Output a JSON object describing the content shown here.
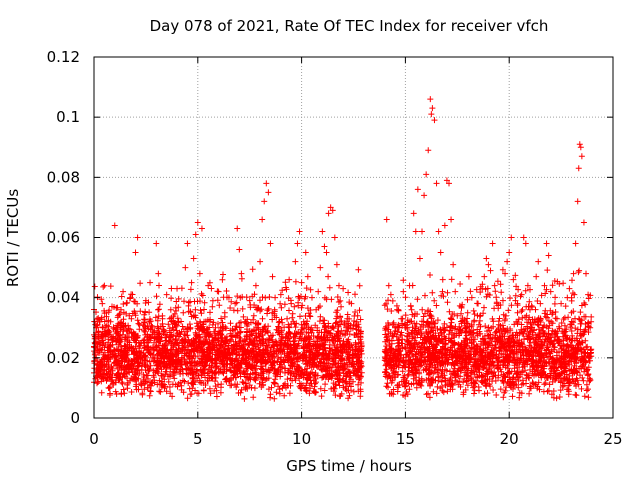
{
  "chart_data": {
    "type": "scatter",
    "title": "Day 078 of 2021, Rate Of TEC Index for receiver vfch",
    "xlabel": "GPS time / hours",
    "ylabel": "ROTI / TECUs",
    "xlim": [
      0,
      25
    ],
    "ylim": [
      0,
      0.12
    ],
    "xticks": [
      0,
      5,
      10,
      15,
      20,
      25
    ],
    "xtick_labels": [
      "0",
      "5",
      "10",
      "15",
      "20",
      "25"
    ],
    "yticks": [
      0,
      0.02,
      0.04,
      0.06,
      0.08,
      0.1,
      0.12
    ],
    "ytick_labels": [
      "0",
      "0.02",
      "0.04",
      "0.06",
      "0.08",
      "0.1",
      "0.12"
    ],
    "grid": true,
    "marker": "+",
    "color": "#ff0000",
    "data_gap_hours": [
      12.9,
      14.0
    ],
    "series": [
      {
        "name": "ROTI",
        "points": [
          [
            0.0,
            0.015
          ],
          [
            0.1,
            0.03
          ],
          [
            0.2,
            0.012
          ],
          [
            0.3,
            0.025
          ],
          [
            0.4,
            0.038
          ],
          [
            0.5,
            0.044
          ],
          [
            0.6,
            0.018
          ],
          [
            0.7,
            0.01
          ],
          [
            0.8,
            0.032
          ],
          [
            0.9,
            0.021
          ],
          [
            1.0,
            0.064
          ],
          [
            1.1,
            0.028
          ],
          [
            1.2,
            0.015
          ],
          [
            1.3,
            0.036
          ],
          [
            1.4,
            0.042
          ],
          [
            1.5,
            0.022
          ],
          [
            1.6,
            0.011
          ],
          [
            1.7,
            0.034
          ],
          [
            1.8,
            0.019
          ],
          [
            1.9,
            0.027
          ],
          [
            2.0,
            0.055
          ],
          [
            2.1,
            0.06
          ],
          [
            2.2,
            0.031
          ],
          [
            2.3,
            0.016
          ],
          [
            2.4,
            0.025
          ],
          [
            2.5,
            0.039
          ],
          [
            2.6,
            0.013
          ],
          [
            2.7,
            0.045
          ],
          [
            2.8,
            0.02
          ],
          [
            2.9,
            0.029
          ],
          [
            3.0,
            0.058
          ],
          [
            3.1,
            0.048
          ],
          [
            3.2,
            0.017
          ],
          [
            3.3,
            0.033
          ],
          [
            3.4,
            0.024
          ],
          [
            3.5,
            0.041
          ],
          [
            3.6,
            0.012
          ],
          [
            3.7,
            0.036
          ],
          [
            3.8,
            0.022
          ],
          [
            3.9,
            0.031
          ],
          [
            4.0,
            0.043
          ],
          [
            4.1,
            0.027
          ],
          [
            4.2,
            0.018
          ],
          [
            4.3,
            0.035
          ],
          [
            4.4,
            0.05
          ],
          [
            4.5,
            0.058
          ],
          [
            4.6,
            0.025
          ],
          [
            4.7,
            0.045
          ],
          [
            4.8,
            0.053
          ],
          [
            4.9,
            0.061
          ],
          [
            5.0,
            0.065
          ],
          [
            5.1,
            0.048
          ],
          [
            5.2,
            0.063
          ],
          [
            5.3,
            0.032
          ],
          [
            5.4,
            0.02
          ],
          [
            5.5,
            0.044
          ],
          [
            5.6,
            0.028
          ],
          [
            5.7,
            0.037
          ],
          [
            5.8,
            0.015
          ],
          [
            5.9,
            0.024
          ],
          [
            6.0,
            0.042
          ],
          [
            6.1,
            0.03
          ],
          [
            6.2,
            0.019
          ],
          [
            6.3,
            0.035
          ],
          [
            6.4,
            0.027
          ],
          [
            6.5,
            0.04
          ],
          [
            6.6,
            0.013
          ],
          [
            6.7,
            0.029
          ],
          [
            6.8,
            0.038
          ],
          [
            6.9,
            0.063
          ],
          [
            7.0,
            0.056
          ],
          [
            7.1,
            0.048
          ],
          [
            7.2,
            0.021
          ],
          [
            7.3,
            0.032
          ],
          [
            7.4,
            0.017
          ],
          [
            7.5,
            0.039
          ],
          [
            7.6,
            0.025
          ],
          [
            7.7,
            0.034
          ],
          [
            7.8,
            0.044
          ],
          [
            7.9,
            0.03
          ],
          [
            8.0,
            0.052
          ],
          [
            8.1,
            0.066
          ],
          [
            8.2,
            0.072
          ],
          [
            8.3,
            0.078
          ],
          [
            8.4,
            0.075
          ],
          [
            8.5,
            0.058
          ],
          [
            8.6,
            0.047
          ],
          [
            8.7,
            0.036
          ],
          [
            8.8,
            0.025
          ],
          [
            8.9,
            0.03
          ],
          [
            9.0,
            0.041
          ],
          [
            9.1,
            0.027
          ],
          [
            9.2,
            0.015
          ],
          [
            9.3,
            0.033
          ],
          [
            9.4,
            0.046
          ],
          [
            9.5,
            0.038
          ],
          [
            9.6,
            0.022
          ],
          [
            9.7,
            0.052
          ],
          [
            9.8,
            0.058
          ],
          [
            9.9,
            0.062
          ],
          [
            10.0,
            0.045
          ],
          [
            10.1,
            0.032
          ],
          [
            10.2,
            0.055
          ],
          [
            10.3,
            0.047
          ],
          [
            10.4,
            0.026
          ],
          [
            10.5,
            0.04
          ],
          [
            10.6,
            0.018
          ],
          [
            10.7,
            0.036
          ],
          [
            10.8,
            0.042
          ],
          [
            10.9,
            0.05
          ],
          [
            11.0,
            0.062
          ],
          [
            11.1,
            0.057
          ],
          [
            11.2,
            0.055
          ],
          [
            11.3,
            0.068
          ],
          [
            11.4,
            0.07
          ],
          [
            11.5,
            0.069
          ],
          [
            11.6,
            0.06
          ],
          [
            11.7,
            0.051
          ],
          [
            11.8,
            0.044
          ],
          [
            11.9,
            0.037
          ],
          [
            12.0,
            0.043
          ],
          [
            12.1,
            0.028
          ],
          [
            12.2,
            0.033
          ],
          [
            12.3,
            0.02
          ],
          [
            12.4,
            0.038
          ],
          [
            12.5,
            0.031
          ],
          [
            12.6,
            0.025
          ],
          [
            12.7,
            0.034
          ],
          [
            12.8,
            0.019
          ],
          [
            14.1,
            0.066
          ],
          [
            14.2,
            0.044
          ],
          [
            14.3,
            0.041
          ],
          [
            14.4,
            0.02
          ],
          [
            14.5,
            0.03
          ],
          [
            14.6,
            0.036
          ],
          [
            14.7,
            0.025
          ],
          [
            14.8,
            0.033
          ],
          [
            14.9,
            0.042
          ],
          [
            15.0,
            0.03
          ],
          [
            15.1,
            0.027
          ],
          [
            15.2,
            0.044
          ],
          [
            15.3,
            0.036
          ],
          [
            15.4,
            0.068
          ],
          [
            15.5,
            0.062
          ],
          [
            15.6,
            0.076
          ],
          [
            15.7,
            0.053
          ],
          [
            15.8,
            0.062
          ],
          [
            15.9,
            0.074
          ],
          [
            16.0,
            0.081
          ],
          [
            16.1,
            0.089
          ],
          [
            16.2,
            0.106
          ],
          [
            16.25,
            0.101
          ],
          [
            16.3,
            0.103
          ],
          [
            16.4,
            0.099
          ],
          [
            16.5,
            0.078
          ],
          [
            16.6,
            0.062
          ],
          [
            16.7,
            0.055
          ],
          [
            16.8,
            0.046
          ],
          [
            16.9,
            0.064
          ],
          [
            17.0,
            0.079
          ],
          [
            17.1,
            0.078
          ],
          [
            17.2,
            0.066
          ],
          [
            17.3,
            0.051
          ],
          [
            17.4,
            0.042
          ],
          [
            17.5,
            0.034
          ],
          [
            17.6,
            0.028
          ],
          [
            17.7,
            0.037
          ],
          [
            17.8,
            0.022
          ],
          [
            17.9,
            0.03
          ],
          [
            18.0,
            0.035
          ],
          [
            18.1,
            0.026
          ],
          [
            18.2,
            0.04
          ],
          [
            18.3,
            0.032
          ],
          [
            18.4,
            0.021
          ],
          [
            18.5,
            0.038
          ],
          [
            18.6,
            0.028
          ],
          [
            18.7,
            0.043
          ],
          [
            18.8,
            0.047
          ],
          [
            18.9,
            0.053
          ],
          [
            19.0,
            0.051
          ],
          [
            19.1,
            0.049
          ],
          [
            19.2,
            0.058
          ],
          [
            19.3,
            0.044
          ],
          [
            19.4,
            0.038
          ],
          [
            19.5,
            0.031
          ],
          [
            19.6,
            0.027
          ],
          [
            19.7,
            0.039
          ],
          [
            19.8,
            0.048
          ],
          [
            19.9,
            0.052
          ],
          [
            20.0,
            0.055
          ],
          [
            20.1,
            0.06
          ],
          [
            20.2,
            0.046
          ],
          [
            20.3,
            0.039
          ],
          [
            20.4,
            0.035
          ],
          [
            20.5,
            0.028
          ],
          [
            20.6,
            0.041
          ],
          [
            20.7,
            0.06
          ],
          [
            20.8,
            0.058
          ],
          [
            20.9,
            0.044
          ],
          [
            21.0,
            0.036
          ],
          [
            21.1,
            0.03
          ],
          [
            21.2,
            0.025
          ],
          [
            21.3,
            0.047
          ],
          [
            21.4,
            0.052
          ],
          [
            21.5,
            0.038
          ],
          [
            21.6,
            0.03
          ],
          [
            21.7,
            0.044
          ],
          [
            21.8,
            0.058
          ],
          [
            21.9,
            0.054
          ],
          [
            22.0,
            0.042
          ],
          [
            22.1,
            0.035
          ],
          [
            22.2,
            0.028
          ],
          [
            22.3,
            0.033
          ],
          [
            22.4,
            0.022
          ],
          [
            22.5,
            0.038
          ],
          [
            22.6,
            0.027
          ],
          [
            22.7,
            0.02
          ],
          [
            22.8,
            0.04
          ],
          [
            22.9,
            0.043
          ],
          [
            23.0,
            0.035
          ],
          [
            23.1,
            0.048
          ],
          [
            23.2,
            0.058
          ],
          [
            23.3,
            0.072
          ],
          [
            23.35,
            0.083
          ],
          [
            23.4,
            0.091
          ],
          [
            23.45,
            0.09
          ],
          [
            23.5,
            0.087
          ],
          [
            23.6,
            0.065
          ],
          [
            23.7,
            0.048
          ],
          [
            23.8,
            0.041
          ],
          [
            23.9,
            0.03
          ]
        ]
      }
    ]
  }
}
